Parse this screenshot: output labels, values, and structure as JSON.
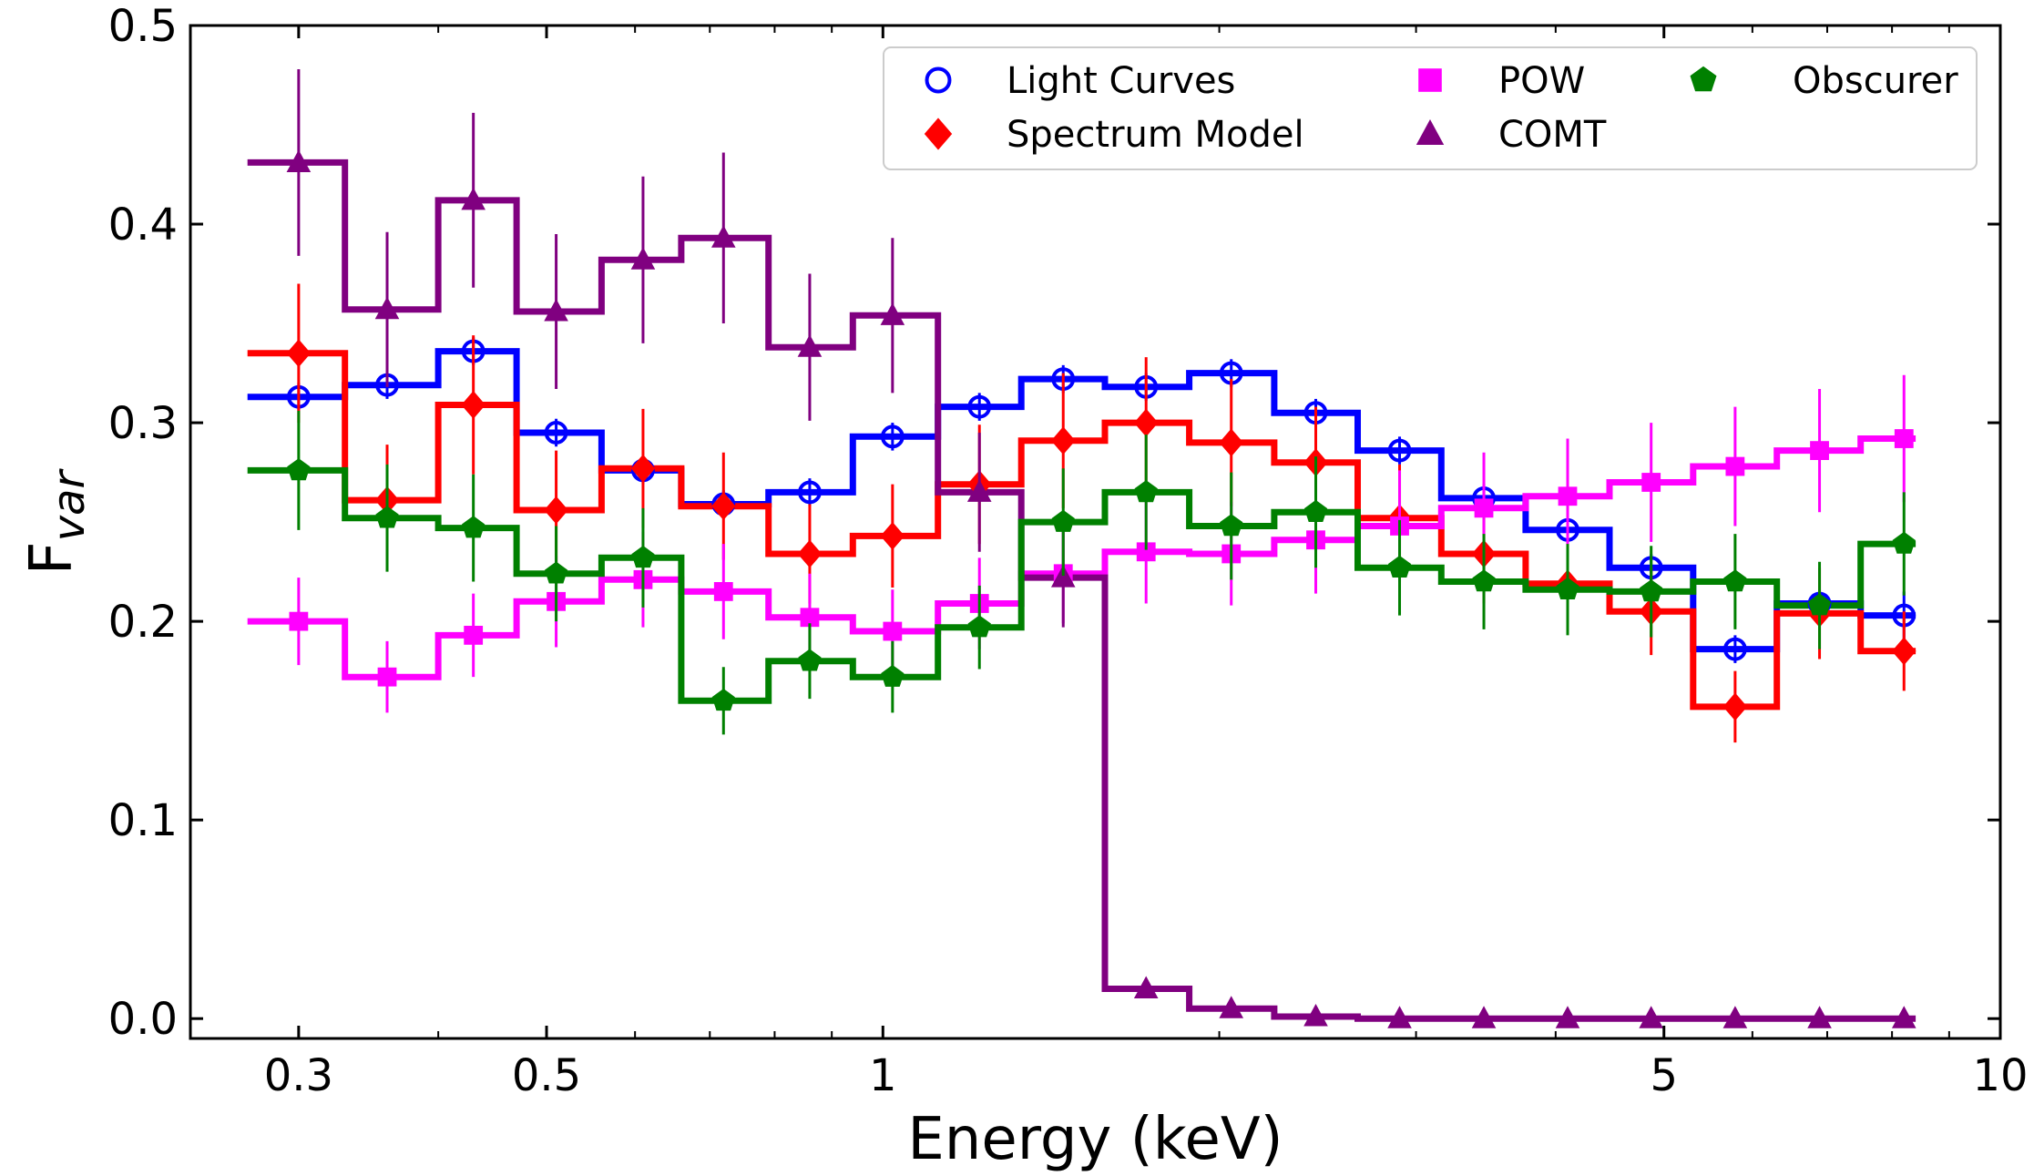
{
  "chart_data": {
    "type": "line",
    "subtype": "step-with-markers-and-errorbars",
    "xlabel": "Energy (keV)",
    "ylabel_main": "F",
    "ylabel_sub": "var",
    "xscale": "log",
    "xlim": [
      0.24,
      10
    ],
    "ylim": [
      -0.01,
      0.5
    ],
    "xticks": [
      {
        "value": 0.3,
        "label": "0.3"
      },
      {
        "value": 0.5,
        "label": "0.5"
      },
      {
        "value": 1,
        "label": "1"
      },
      {
        "value": 5,
        "label": "5"
      },
      {
        "value": 10,
        "label": "10"
      }
    ],
    "yticks": [
      {
        "value": 0.0,
        "label": "0.0"
      },
      {
        "value": 0.1,
        "label": "0.1"
      },
      {
        "value": 0.2,
        "label": "0.2"
      },
      {
        "value": 0.3,
        "label": "0.3"
      },
      {
        "value": 0.4,
        "label": "0.4"
      },
      {
        "value": 0.5,
        "label": "0.5"
      }
    ],
    "bin_edges": [
      0.27,
      0.33,
      0.4,
      0.47,
      0.56,
      0.66,
      0.79,
      0.94,
      1.12,
      1.33,
      1.58,
      1.88,
      2.24,
      2.66,
      3.16,
      3.76,
      4.47,
      5.31,
      6.31,
      7.5,
      8.4
    ],
    "x": [
      0.3,
      0.36,
      0.43,
      0.51,
      0.61,
      0.72,
      0.86,
      1.02,
      1.22,
      1.45,
      1.72,
      2.05,
      2.44,
      2.9,
      3.45,
      4.1,
      4.87,
      5.79,
      6.89,
      8.2
    ],
    "legend_position": "top-right",
    "series": [
      {
        "name": "Light Curves",
        "color": "#0000ff",
        "marker": "open-circle",
        "values": [
          0.313,
          0.319,
          0.336,
          0.295,
          0.276,
          0.259,
          0.265,
          0.293,
          0.308,
          0.322,
          0.318,
          0.325,
          0.305,
          0.286,
          0.262,
          0.246,
          0.227,
          0.186,
          0.209,
          0.203
        ],
        "errors": [
          0.007,
          0.007,
          0.007,
          0.007,
          0.007,
          0.007,
          0.007,
          0.007,
          0.007,
          0.007,
          0.007,
          0.007,
          0.007,
          0.007,
          0.007,
          0.007,
          0.007,
          0.007,
          0.007,
          0.012
        ]
      },
      {
        "name": "Spectrum Model",
        "color": "#ff0000",
        "marker": "diamond",
        "values": [
          0.335,
          0.261,
          0.309,
          0.256,
          0.277,
          0.258,
          0.234,
          0.243,
          0.269,
          0.291,
          0.3,
          0.29,
          0.28,
          0.252,
          0.234,
          0.219,
          0.205,
          0.157,
          0.204,
          0.185
        ],
        "errors": [
          0.035,
          0.028,
          0.035,
          0.03,
          0.03,
          0.027,
          0.025,
          0.026,
          0.03,
          0.034,
          0.033,
          0.032,
          0.028,
          0.027,
          0.025,
          0.025,
          0.022,
          0.018,
          0.023,
          0.02
        ]
      },
      {
        "name": "POW",
        "color": "#ff00ff",
        "marker": "square",
        "values": [
          0.2,
          0.172,
          0.193,
          0.21,
          0.221,
          0.215,
          0.202,
          0.195,
          0.209,
          0.224,
          0.235,
          0.234,
          0.241,
          0.248,
          0.257,
          0.263,
          0.27,
          0.278,
          0.286,
          0.292
        ],
        "errors": [
          0.022,
          0.018,
          0.021,
          0.023,
          0.024,
          0.024,
          0.022,
          0.021,
          0.023,
          0.025,
          0.026,
          0.026,
          0.027,
          0.028,
          0.028,
          0.029,
          0.03,
          0.03,
          0.031,
          0.032
        ]
      },
      {
        "name": "COMT",
        "color": "#800080",
        "marker": "triangle",
        "values": [
          0.431,
          0.357,
          0.412,
          0.356,
          0.382,
          0.393,
          0.338,
          0.354,
          0.265,
          0.222,
          0.015,
          0.005,
          0.001,
          0.0,
          0.0,
          0.0,
          0.0,
          0.0,
          0.0,
          0.0
        ],
        "errors": [
          0.047,
          0.039,
          0.044,
          0.039,
          0.042,
          0.043,
          0.037,
          0.039,
          0.03,
          0.025,
          0.0,
          0.0,
          0.0,
          0.0,
          0.0,
          0.0,
          0.0,
          0.0,
          0.0,
          0.0
        ]
      },
      {
        "name": "Obscurer",
        "color": "#008000",
        "marker": "pentagon",
        "values": [
          0.276,
          0.252,
          0.247,
          0.224,
          0.232,
          0.16,
          0.18,
          0.172,
          0.197,
          0.25,
          0.265,
          0.248,
          0.255,
          0.227,
          0.22,
          0.216,
          0.215,
          0.22,
          0.208,
          0.239
        ],
        "errors": [
          0.03,
          0.027,
          0.027,
          0.024,
          0.025,
          0.017,
          0.019,
          0.018,
          0.021,
          0.027,
          0.029,
          0.027,
          0.028,
          0.024,
          0.024,
          0.023,
          0.023,
          0.024,
          0.022,
          0.026
        ]
      }
    ],
    "legend_order": [
      {
        "series": 0,
        "col": 0,
        "row": 0
      },
      {
        "series": 1,
        "col": 0,
        "row": 1
      },
      {
        "series": 2,
        "col": 1,
        "row": 0
      },
      {
        "series": 3,
        "col": 1,
        "row": 1
      },
      {
        "series": 4,
        "col": 2,
        "row": 0
      }
    ]
  }
}
